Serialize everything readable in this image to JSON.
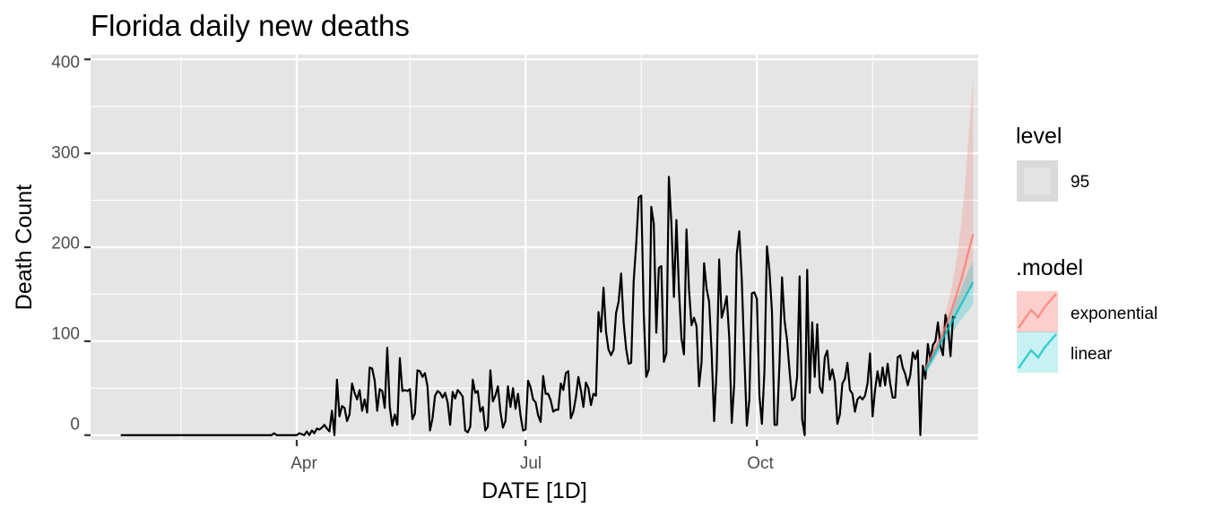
{
  "chart_data": {
    "type": "line",
    "title": "Florida daily new deaths",
    "xlabel": "DATE [1D]",
    "ylabel": "Death Count",
    "x_tick_labels": [
      "Apr",
      "Jul",
      "Oct"
    ],
    "y_tick_labels": [
      "0",
      "100",
      "200",
      "300",
      "400"
    ],
    "ylim": [
      -5,
      405
    ],
    "xlim": [
      "2020-01-10",
      "2020-12-28"
    ],
    "grid": true,
    "legend_position": "right",
    "legend": {
      "level_title": "level",
      "level_label": "95",
      "model_title": ".model",
      "model_labels": [
        "exponential",
        "linear"
      ]
    },
    "colors": {
      "panel": "#e5e5e5",
      "grid": "#ffffff",
      "observed": "#000000",
      "exponential": "#f8766d",
      "linear": "#00bfc4"
    },
    "observed": {
      "start_date": "2020-01-22",
      "values": [
        0,
        0,
        0,
        0,
        0,
        0,
        0,
        0,
        0,
        0,
        0,
        0,
        0,
        0,
        0,
        0,
        0,
        0,
        0,
        0,
        0,
        0,
        0,
        0,
        0,
        0,
        0,
        0,
        0,
        0,
        0,
        0,
        0,
        0,
        0,
        0,
        0,
        0,
        0,
        0,
        0,
        0,
        0,
        0,
        0,
        0,
        0,
        0,
        0,
        0,
        0,
        0,
        0,
        0,
        0,
        0,
        0,
        0,
        0,
        0,
        0,
        2,
        0,
        0,
        0,
        0,
        0,
        0,
        0,
        0,
        0,
        2,
        1,
        0,
        4,
        0,
        5,
        2,
        7,
        6,
        8,
        11,
        7,
        4,
        26,
        0,
        59,
        20,
        31,
        29,
        15,
        22,
        55,
        45,
        38,
        48,
        26,
        38,
        24,
        72,
        71,
        58,
        26,
        49,
        47,
        29,
        93,
        30,
        10,
        22,
        11,
        82,
        47,
        48,
        47,
        49,
        17,
        23,
        69,
        68,
        62,
        66,
        52,
        5,
        18,
        42,
        47,
        45,
        40,
        45,
        35,
        11,
        46,
        39,
        48,
        45,
        41,
        5,
        3,
        9,
        59,
        45,
        47,
        25,
        30,
        5,
        9,
        69,
        36,
        42,
        52,
        25,
        8,
        15,
        52,
        30,
        50,
        28,
        44,
        21,
        5,
        6,
        58,
        51,
        38,
        35,
        21,
        14,
        63,
        44,
        44,
        37,
        25,
        27,
        27,
        55,
        48,
        66,
        68,
        18,
        25,
        40,
        62,
        48,
        30,
        56,
        50,
        32,
        44,
        42,
        131,
        110,
        157,
        110,
        91,
        85,
        91,
        130,
        142,
        172,
        120,
        92,
        76,
        77,
        164,
        203,
        253,
        255,
        130,
        62,
        70,
        243,
        225,
        109,
        178,
        180,
        78,
        87,
        275,
        225,
        147,
        229,
        155,
        103,
        86,
        219,
        155,
        117,
        125,
        116,
        52,
        78,
        183,
        156,
        142,
        88,
        15,
        70,
        187,
        125,
        135,
        148,
        104,
        13,
        55,
        193,
        217,
        165,
        85,
        10,
        38,
        151,
        152,
        145,
        42,
        12,
        68,
        201,
        175,
        131,
        11,
        11,
        77,
        168,
        122,
        101,
        68,
        37,
        40,
        62,
        169,
        17,
        0,
        176,
        45,
        120,
        62,
        118,
        51,
        45,
        83,
        90,
        59,
        70,
        57,
        12,
        22,
        55,
        60,
        77,
        48,
        44,
        25,
        38,
        41,
        38,
        42,
        55,
        87,
        20,
        48,
        68,
        52,
        72,
        53,
        76,
        55,
        40,
        40,
        83,
        85,
        72,
        65,
        53,
        64,
        88,
        81,
        90,
        0,
        74,
        60,
        97,
        80,
        96,
        100,
        120,
        95,
        85,
        128,
        115,
        84,
        126,
        125
      ]
    },
    "forecast": {
      "start_date": "2020-12-07",
      "exponential": [
        70,
        76,
        82,
        87,
        92,
        97,
        102,
        108,
        115,
        122,
        130,
        138,
        146,
        155,
        163,
        173,
        183,
        194,
        204,
        214
      ],
      "exponential_lo95": [
        66,
        71,
        76,
        80,
        84,
        88,
        92,
        97,
        103,
        109,
        115,
        121,
        127,
        133,
        140,
        146,
        150,
        154,
        156,
        158
      ],
      "exponential_hi95": [
        74,
        82,
        88,
        95,
        101,
        108,
        114,
        122,
        131,
        141,
        152,
        165,
        180,
        198,
        220,
        245,
        276,
        310,
        346,
        380
      ],
      "linear": [
        68,
        73,
        78,
        83,
        88,
        93,
        98,
        103,
        108,
        113,
        118,
        123,
        128,
        133,
        138,
        143,
        148,
        153,
        158,
        163
      ],
      "linear_lo95": [
        64,
        69,
        73,
        77,
        82,
        86,
        90,
        94,
        98,
        102,
        106,
        110,
        114,
        118,
        122,
        125,
        129,
        132,
        136,
        140
      ],
      "linear_hi95": [
        72,
        77,
        83,
        89,
        94,
        100,
        106,
        112,
        118,
        124,
        130,
        136,
        142,
        148,
        154,
        161,
        167,
        174,
        180,
        186
      ]
    }
  }
}
